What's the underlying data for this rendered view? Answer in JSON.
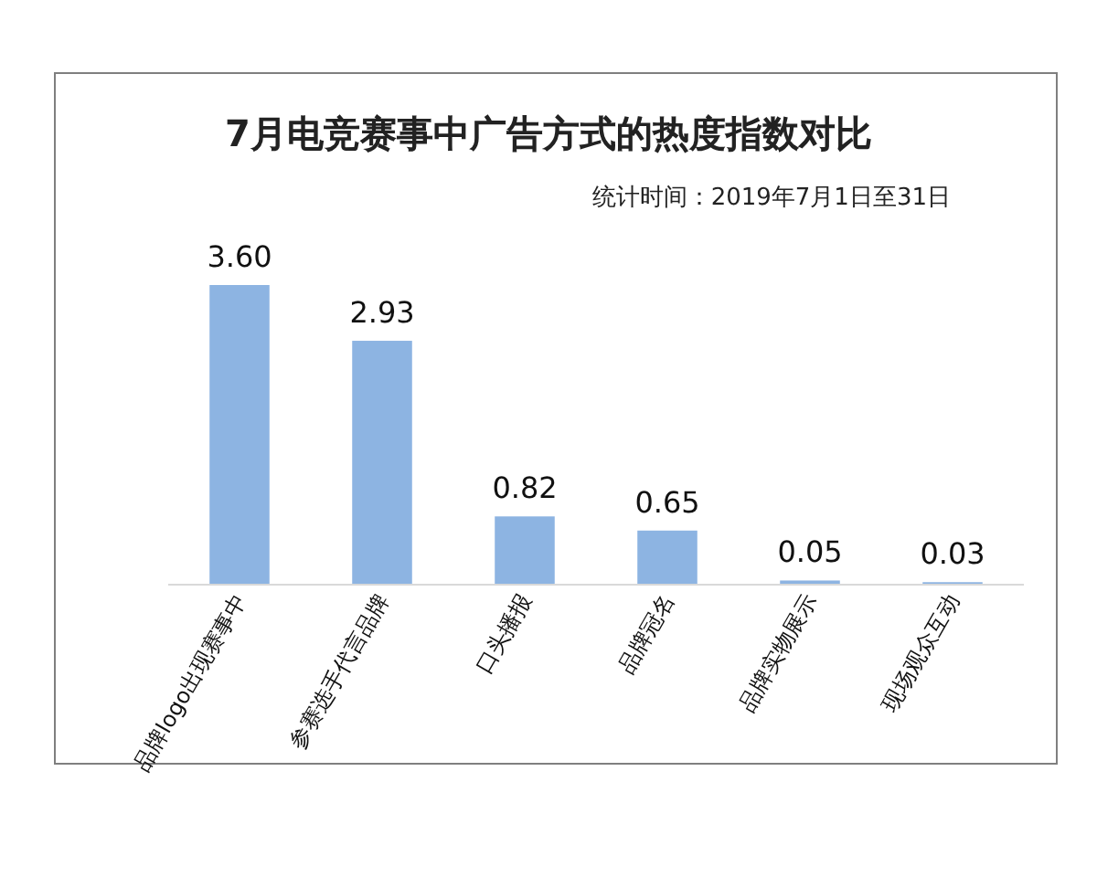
{
  "chart_data": {
    "type": "bar",
    "title": "7月电竞赛事中广告方式的热度指数对比",
    "subtitle": "统计时间：2019年7月1日至31日",
    "categories": [
      "品牌logo出现赛事中",
      "参赛选手代言品牌",
      "口头播报",
      "品牌冠名",
      "品牌实物展示",
      "现场观众互动"
    ],
    "values": [
      3.6,
      2.93,
      0.82,
      0.65,
      0.05,
      0.03
    ],
    "value_labels": [
      "3.60",
      "2.93",
      "0.82",
      "0.65",
      "0.05",
      "0.03"
    ],
    "color": "#8db4e2"
  }
}
